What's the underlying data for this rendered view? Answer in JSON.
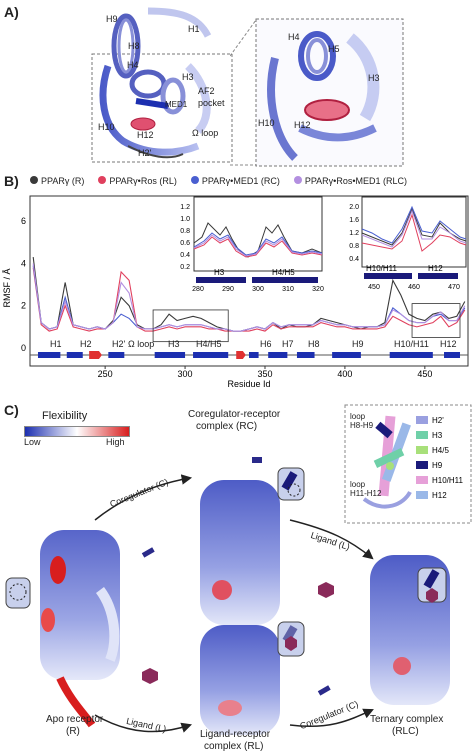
{
  "panelA": {
    "letter": "A)",
    "labels": [
      "H9",
      "H1",
      "H8",
      "H4",
      "H3",
      "AF2",
      "pocket",
      "MED1",
      "H10",
      "H12",
      "Ω loop",
      "H2'"
    ],
    "inset_labels": [
      "H4",
      "H5",
      "H3",
      "H10",
      "H12"
    ]
  },
  "panelB": {
    "letter": "B)",
    "legend": [
      {
        "label": "PPARγ (R)",
        "color": "#3a3a3a"
      },
      {
        "label": "PPARγ•Ros (RL)",
        "color": "#e0405e"
      },
      {
        "label": "PPARγ•MED1 (RC)",
        "color": "#4a5fd0"
      },
      {
        "label": "PPARγ•Ros•MED1 (RLC)",
        "color": "#b38fe0"
      }
    ],
    "ylabel": "RMSF / Å",
    "xlabel": "Residue Id",
    "helix_labels": [
      "H1",
      "H2",
      "H2'",
      "Ω loop",
      "H3",
      "H4/H5",
      "H6",
      "H7",
      "H8",
      "H9",
      "H10/H11",
      "H12"
    ],
    "inset1": {
      "yticks": [
        "1.2",
        "1.0",
        "0.8",
        "0.6",
        "0.4",
        "0.2"
      ],
      "xticks": [
        "280",
        "290",
        "300",
        "310",
        "320"
      ],
      "bars": [
        "H3",
        "H4/H5"
      ]
    },
    "inset2": {
      "yticks": [
        "2.0",
        "1.6",
        "1.2",
        "0.8",
        "0.4"
      ],
      "xticks": [
        "450",
        "460",
        "470"
      ],
      "bars": [
        "H10/H11",
        "H12"
      ]
    }
  },
  "panelC": {
    "letter": "C)",
    "flexibility_title": "Flexibility",
    "flex_low": "Low",
    "flex_high": "High",
    "rc_title_1": "Coregulator-receptor",
    "rc_title_2": "complex (RC)",
    "apo_1": "Apo receptor",
    "apo_2": "(R)",
    "rl_1": "Ligand-receptor",
    "rl_2": "complex (RL)",
    "tern_1": "Ternary complex",
    "tern_2": "(RLC)",
    "arrow_coreg_c": "Coregulator (C)",
    "arrow_ligand_l": "Ligand (L)",
    "arrow_ligand_l2": "Ligand (L)",
    "arrow_coreg_c2": "Coregulator (C)",
    "loop_h8h9_1": "loop",
    "loop_h8h9_2": "H8-H9",
    "loop_h11h12_1": "loop",
    "loop_h11h12_2": "H11-H12",
    "helix_key": [
      {
        "label": "H2'",
        "color": "#9aa0e0"
      },
      {
        "label": "H3",
        "color": "#6fd0a8"
      },
      {
        "label": "H4/5",
        "color": "#a8e07a"
      },
      {
        "label": "H9",
        "color": "#1a1a7a"
      },
      {
        "label": "H10/H11",
        "color": "#e6a0d8"
      },
      {
        "label": "H12",
        "color": "#9ab8e8"
      }
    ]
  },
  "chart_data": {
    "type": "line",
    "xlabel": "Residue Id",
    "ylabel": "RMSF / Å",
    "xlim": [
      203,
      477
    ],
    "ylim": [
      0,
      7
    ],
    "xticks": [
      250,
      300,
      350,
      400,
      450
    ],
    "yticks": [
      0,
      2,
      4,
      6
    ],
    "x": [
      205,
      210,
      215,
      220,
      225,
      230,
      235,
      240,
      245,
      250,
      255,
      260,
      265,
      270,
      275,
      280,
      285,
      290,
      295,
      300,
      305,
      310,
      315,
      320,
      325,
      330,
      335,
      340,
      345,
      350,
      355,
      360,
      365,
      370,
      375,
      380,
      385,
      390,
      395,
      400,
      405,
      410,
      415,
      420,
      425,
      430,
      435,
      440,
      445,
      450,
      455,
      460,
      465,
      470,
      475
    ],
    "series": [
      {
        "name": "PPARγ (R)",
        "values": [
          4.3,
          1.2,
          0.9,
          1.0,
          3.1,
          1.1,
          1.0,
          0.9,
          1.0,
          0.9,
          1.3,
          2.4,
          2.0,
          1.1,
          0.9,
          0.9,
          1.1,
          1.6,
          1.3,
          1.4,
          1.5,
          1.4,
          1.2,
          1.0,
          0.9,
          0.8,
          0.8,
          0.9,
          1.0,
          0.9,
          1.2,
          0.9,
          1.1,
          1.0,
          1.0,
          1.1,
          1.4,
          1.3,
          1.2,
          1.1,
          1.0,
          0.9,
          1.0,
          1.0,
          1.2,
          3.2,
          2.5,
          1.6,
          1.4,
          1.3,
          1.6,
          1.7,
          1.4,
          1.5,
          2.2
        ]
      },
      {
        "name": "PPARγ•Ros (RL)",
        "values": [
          3.8,
          1.1,
          0.8,
          0.9,
          2.0,
          1.0,
          0.9,
          0.8,
          0.9,
          0.9,
          1.2,
          3.6,
          3.2,
          1.0,
          0.8,
          0.8,
          0.9,
          1.0,
          0.9,
          1.0,
          1.0,
          1.0,
          0.9,
          0.9,
          0.8,
          0.8,
          0.8,
          0.8,
          0.9,
          0.8,
          1.1,
          0.9,
          1.0,
          1.0,
          1.0,
          1.0,
          1.2,
          1.1,
          1.0,
          1.0,
          0.9,
          0.9,
          0.9,
          0.9,
          1.0,
          1.5,
          1.3,
          1.1,
          1.0,
          1.1,
          1.2,
          1.5,
          1.0,
          1.2,
          1.8
        ]
      },
      {
        "name": "PPARγ•MED1 (RC)",
        "values": [
          3.9,
          1.2,
          0.9,
          1.0,
          2.4,
          1.1,
          1.0,
          0.9,
          1.0,
          0.9,
          1.2,
          1.6,
          1.4,
          1.0,
          0.9,
          0.9,
          1.0,
          1.1,
          1.0,
          1.1,
          1.1,
          1.1,
          1.0,
          0.9,
          0.9,
          0.8,
          0.8,
          0.9,
          1.0,
          0.9,
          1.2,
          1.0,
          1.1,
          1.1,
          1.1,
          1.1,
          1.3,
          1.2,
          1.1,
          1.1,
          1.0,
          1.0,
          1.0,
          1.0,
          1.1,
          1.9,
          1.6,
          1.3,
          1.2,
          1.2,
          1.5,
          1.6,
          1.3,
          1.3,
          1.9
        ]
      },
      {
        "name": "PPARγ•Ros•MED1 (RLC)",
        "values": [
          4.0,
          1.2,
          0.9,
          1.0,
          2.2,
          1.1,
          1.0,
          0.9,
          1.0,
          0.9,
          1.2,
          3.1,
          2.6,
          1.0,
          0.9,
          0.9,
          1.0,
          1.1,
          1.0,
          1.1,
          1.1,
          1.1,
          1.0,
          0.9,
          0.9,
          0.8,
          0.8,
          0.9,
          1.0,
          0.9,
          1.2,
          1.0,
          1.1,
          1.1,
          1.1,
          1.1,
          1.3,
          1.2,
          1.1,
          1.1,
          1.0,
          1.0,
          1.0,
          1.0,
          1.1,
          1.8,
          1.6,
          1.3,
          1.2,
          1.2,
          1.5,
          1.7,
          1.3,
          1.3,
          2.0
        ]
      }
    ]
  }
}
